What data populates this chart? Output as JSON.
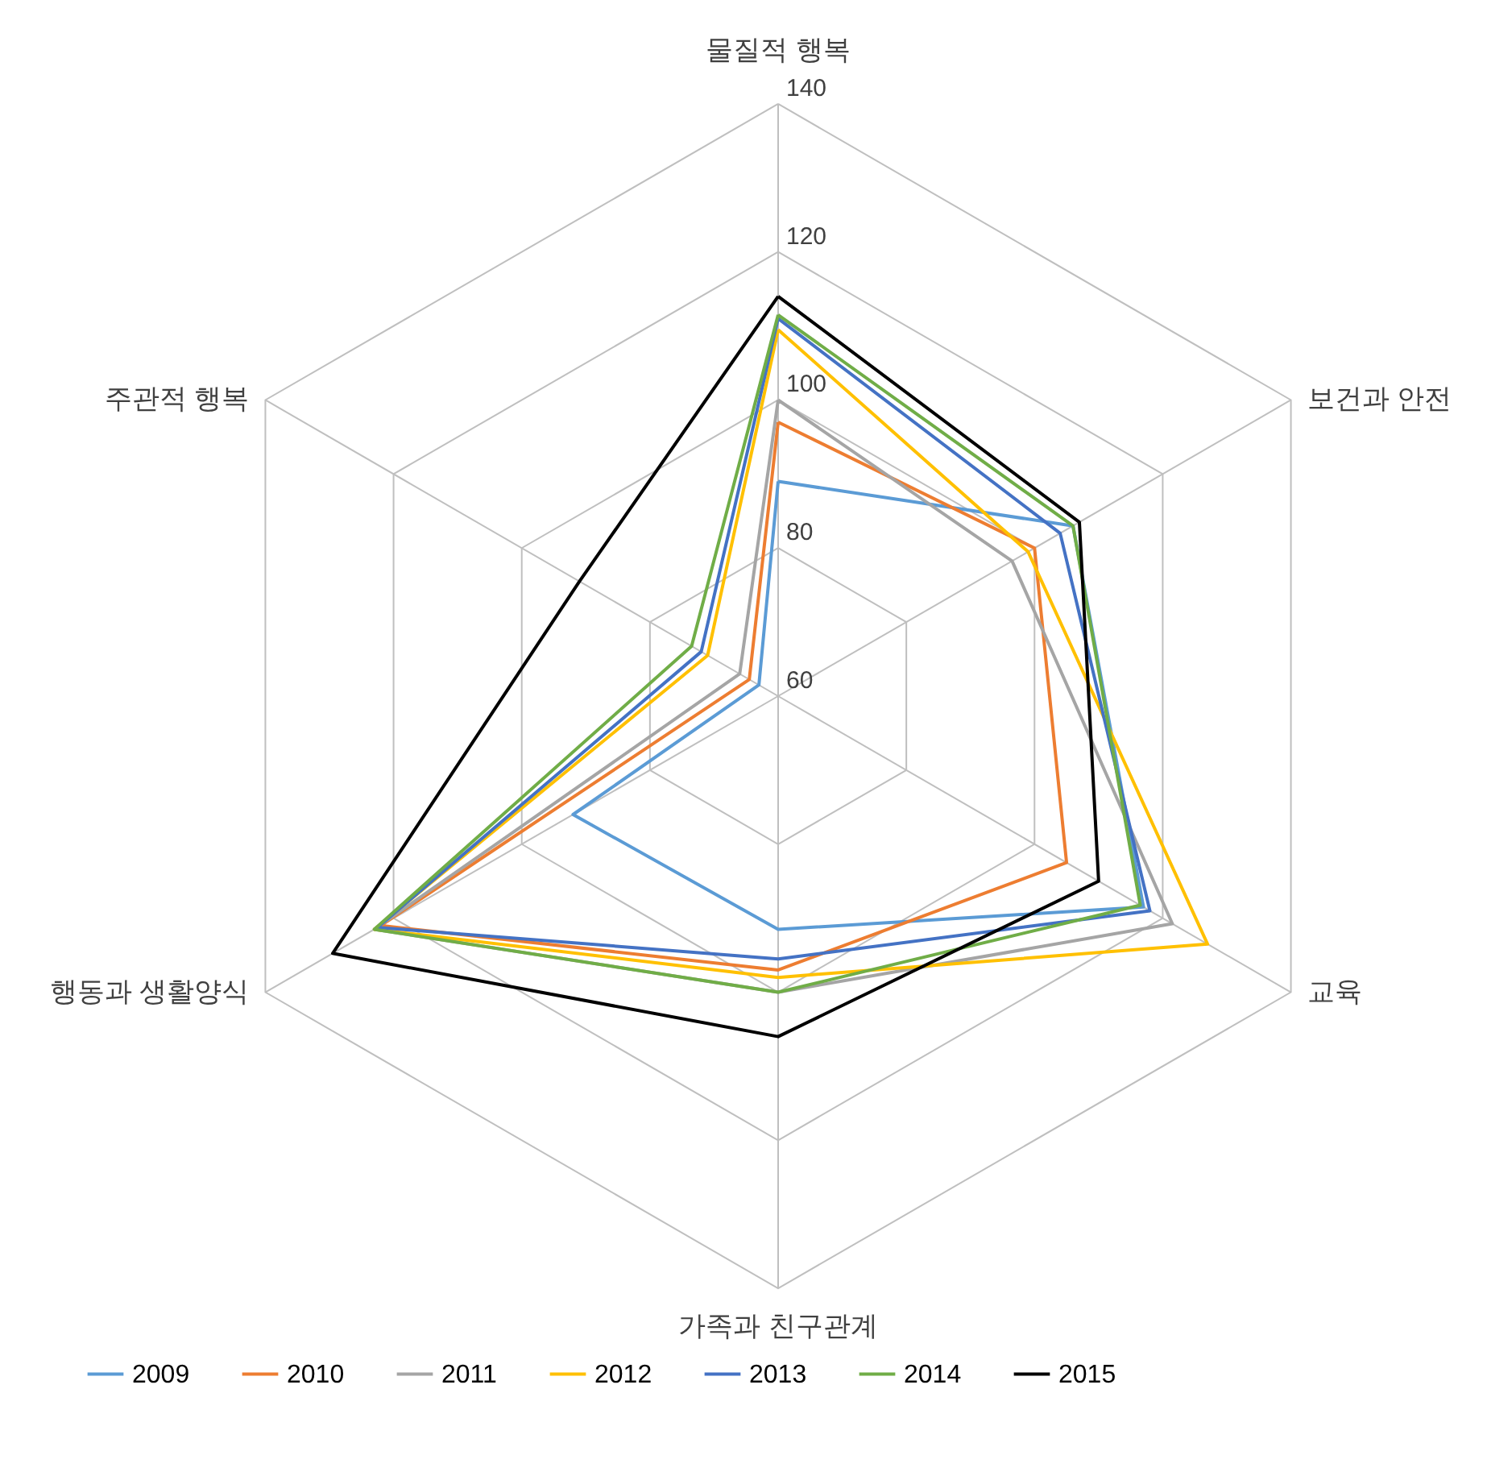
{
  "chart_data": {
    "type": "radar",
    "categories": [
      "물질적 행복",
      "보건과 안전",
      "교육",
      "가족과 친구관계",
      "행동과 생활양식",
      "주관적 행복"
    ],
    "ylim": [
      60,
      140
    ],
    "yticks": [
      60,
      80,
      100,
      120,
      140
    ],
    "grid": true,
    "legend": "bottom",
    "series": [
      {
        "name": "2009",
        "color": "#5b9bd5",
        "values": [
          89,
          106,
          117,
          91.5,
          92,
          63
        ]
      },
      {
        "name": "2010",
        "color": "#ed7d31",
        "values": [
          97,
          100,
          105,
          97,
          122,
          64.5
        ]
      },
      {
        "name": "2011",
        "color": "#a5a5a5",
        "values": [
          100,
          96.5,
          121.5,
          100,
          123,
          66
        ]
      },
      {
        "name": "2012",
        "color": "#ffc000",
        "values": [
          109.5,
          99,
          127,
          98,
          123,
          71
        ]
      },
      {
        "name": "2013",
        "color": "#4472c4",
        "values": [
          111,
          104,
          118,
          95.5,
          122.5,
          72
        ]
      },
      {
        "name": "2014",
        "color": "#70ad47",
        "values": [
          111.5,
          106,
          116.5,
          100,
          123,
          73.5
        ]
      },
      {
        "name": "2015",
        "color": "#000000",
        "values": [
          114,
          107,
          110,
          106,
          129.5,
          91
        ]
      }
    ]
  }
}
